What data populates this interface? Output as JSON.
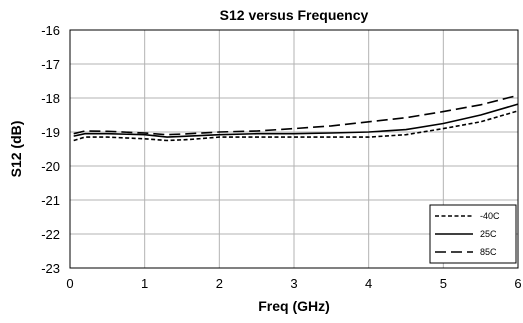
{
  "chart_data": {
    "type": "line",
    "title": "S12 versus Frequency",
    "xlabel": "Freq (GHz)",
    "ylabel": "S12 (dB)",
    "xlim": [
      0,
      6
    ],
    "ylim": [
      -23,
      -16
    ],
    "xticks": [
      0,
      1,
      2,
      3,
      4,
      5,
      6
    ],
    "yticks": [
      -16,
      -17,
      -18,
      -19,
      -20,
      -21,
      -22,
      -23
    ],
    "grid": true,
    "legend_position": "bottom-right",
    "series": [
      {
        "name": "-40C",
        "dash": "dashed",
        "x": [
          0.05,
          0.2,
          0.5,
          1.0,
          1.3,
          1.6,
          2.0,
          2.5,
          3.0,
          3.5,
          4.0,
          4.5,
          5.0,
          5.5,
          6.0
        ],
        "y": [
          -19.25,
          -19.15,
          -19.15,
          -19.2,
          -19.25,
          -19.22,
          -19.15,
          -19.15,
          -19.15,
          -19.15,
          -19.15,
          -19.08,
          -18.9,
          -18.7,
          -18.38
        ]
      },
      {
        "name": "25C",
        "dash": "solid",
        "x": [
          0.05,
          0.2,
          0.5,
          1.0,
          1.3,
          1.6,
          2.0,
          2.5,
          3.0,
          3.5,
          4.0,
          4.5,
          5.0,
          5.5,
          6.0
        ],
        "y": [
          -19.12,
          -19.05,
          -19.05,
          -19.08,
          -19.15,
          -19.12,
          -19.08,
          -19.05,
          -19.05,
          -19.03,
          -19.0,
          -18.93,
          -18.75,
          -18.5,
          -18.18
        ]
      },
      {
        "name": "85C",
        "dash": "long-dash",
        "x": [
          0.05,
          0.2,
          0.5,
          1.0,
          1.3,
          1.6,
          2.0,
          2.5,
          3.0,
          3.5,
          4.0,
          4.5,
          5.0,
          5.5,
          6.0
        ],
        "y": [
          -19.05,
          -18.97,
          -18.98,
          -19.03,
          -19.08,
          -19.05,
          -19.0,
          -18.97,
          -18.9,
          -18.82,
          -18.7,
          -18.58,
          -18.4,
          -18.2,
          -17.92
        ]
      }
    ]
  }
}
